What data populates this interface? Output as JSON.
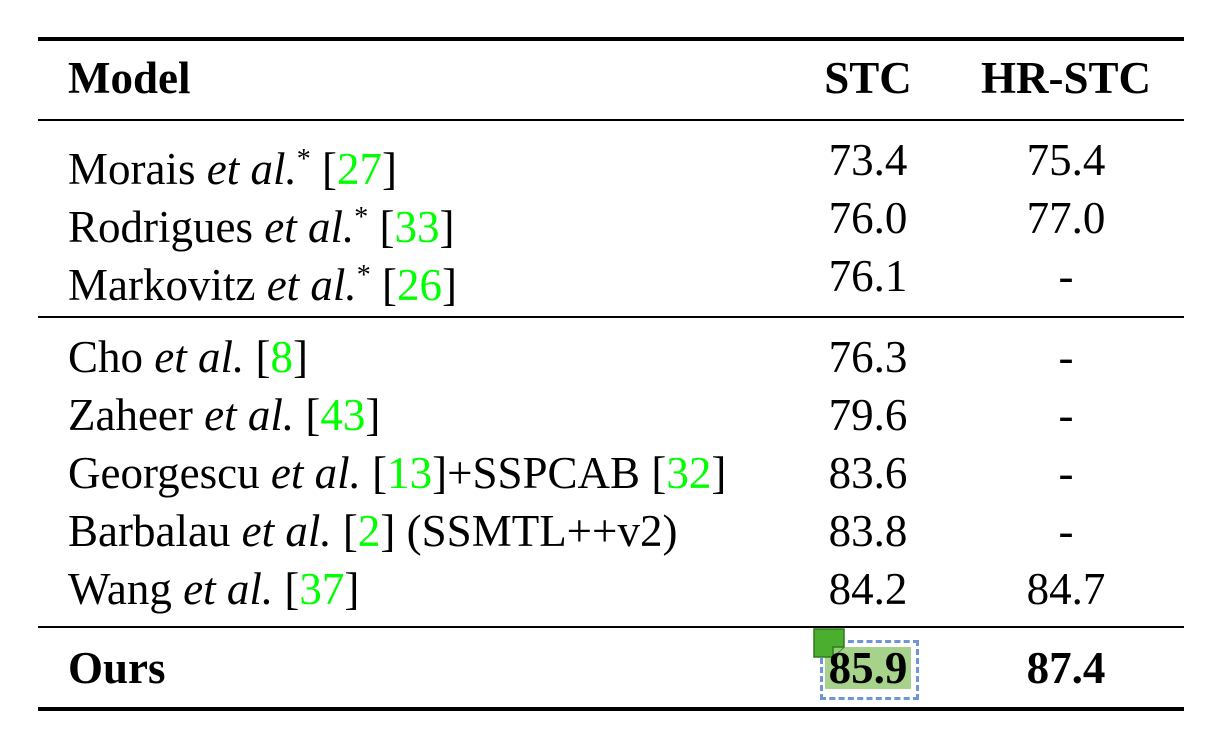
{
  "table": {
    "headers": {
      "model": "Model",
      "stc": "STC",
      "hr_stc": "HR-STC"
    },
    "group1": [
      {
        "name": "Morais",
        "etal": "et al.",
        "star": "*",
        "cite": "27",
        "stc": "73.4",
        "hr_stc": "75.4"
      },
      {
        "name": "Rodrigues",
        "etal": "et al.",
        "star": "*",
        "cite": "33",
        "stc": "76.0",
        "hr_stc": "77.0"
      },
      {
        "name": "Markovitz",
        "etal": "et al.",
        "star": "*",
        "cite": "26",
        "stc": "76.1",
        "hr_stc": "-"
      }
    ],
    "group2": [
      {
        "name": "Cho",
        "etal": "et al.",
        "cite": "8",
        "stc": "76.3",
        "hr_stc": "-"
      },
      {
        "name": "Zaheer",
        "etal": "et al.",
        "cite": "43",
        "stc": "79.6",
        "hr_stc": "-"
      },
      {
        "name": "Georgescu",
        "etal": "et al.",
        "cite": "13",
        "mid": "]+SSPCAB [",
        "cite2": "32",
        "stc": "83.6",
        "hr_stc": "-"
      },
      {
        "name": "Barbalau",
        "etal": "et al.",
        "cite": "2",
        "suffix": "(SSMTL++v2)",
        "stc": "83.8",
        "hr_stc": "-"
      },
      {
        "name": "Wang",
        "etal": "et al.",
        "cite": "37",
        "stc": "84.2",
        "hr_stc": "84.7"
      }
    ],
    "ours": {
      "name": "Ours",
      "stc": "85.9",
      "hr_stc": "87.4"
    }
  },
  "colors": {
    "citation": "#00ff00",
    "highlight": "#a6d28c",
    "selection_border": "#6f95d6",
    "marker": "#4cae2f"
  }
}
